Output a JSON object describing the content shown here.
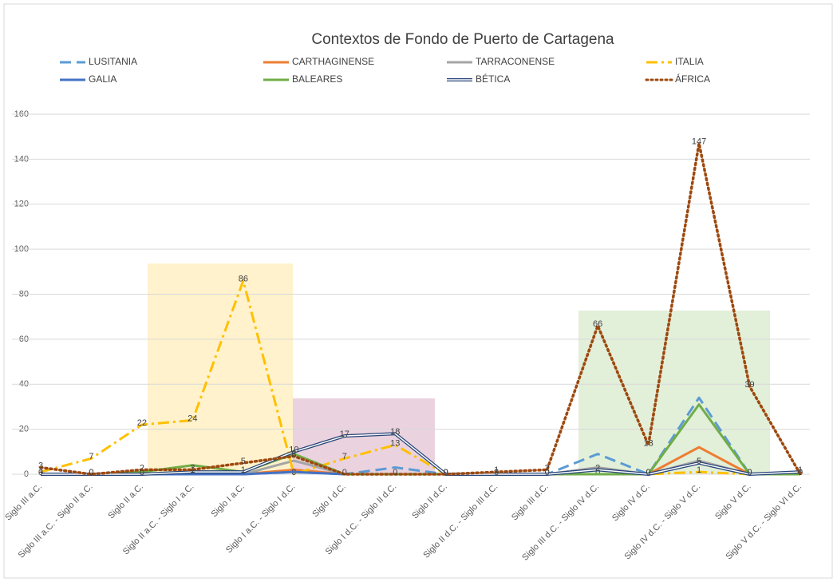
{
  "chart_data": {
    "type": "line",
    "title": "Contextos de Fondo de Puerto de Cartagena",
    "categories": [
      "Siglo III a.C.",
      "Siglo III a.C. - Siglo II a.C.",
      "Siglo II a.C.",
      "Siglo II a.C. - Siglo I a.C.",
      "Siglo I a.C.",
      "Siglo I a.C. - Siglo I d.C.",
      "Siglo I d.C.",
      "Siglo I d.C. - Siglo II d.C.",
      "Siglo II d.C.",
      "Siglo II d.C. - Siglo III d.C.",
      "Siglo III d.C.",
      "Siglo III d.C. - Siglo IV d.C.",
      "Siglo IV d.C.",
      "Siglo IV d.C. - Siglo V d.C.",
      "Siglo V d.C.",
      "Siglo V d.C. - Siglo VI d.C."
    ],
    "series": [
      {
        "name": "LUSITANIA",
        "color": "#5b9bd5",
        "style": "dashed",
        "values": [
          0,
          0,
          0,
          0,
          0,
          1,
          0,
          3,
          0,
          0,
          0,
          9,
          0,
          34,
          0,
          0
        ]
      },
      {
        "name": "CARTHAGINENSE",
        "color": "#ed7d31",
        "style": "solid",
        "values": [
          0,
          0,
          0,
          0,
          0,
          2,
          0,
          0,
          0,
          0,
          0,
          0,
          0,
          12,
          0,
          0
        ]
      },
      {
        "name": "TARRACONENSE",
        "color": "#a5a5a5",
        "style": "solid",
        "values": [
          0,
          0,
          0,
          0,
          0,
          6,
          0,
          0,
          0,
          0,
          0,
          3,
          0,
          6,
          0,
          0
        ]
      },
      {
        "name": "ITALIA",
        "color": "#ffc000",
        "style": "dashdot",
        "data_labels": true,
        "values": [
          1,
          7,
          22,
          24,
          86,
          0,
          7,
          13,
          0,
          0,
          0,
          0,
          0,
          1,
          0,
          0
        ]
      },
      {
        "name": "GALIA",
        "color": "#4472c4",
        "style": "solid",
        "values": [
          0,
          0,
          0,
          0,
          0,
          1,
          0,
          0,
          0,
          0,
          0,
          0,
          0,
          5,
          0,
          0
        ]
      },
      {
        "name": "BALEARES",
        "color": "#70ad47",
        "style": "solid",
        "values": [
          0,
          0,
          1,
          4,
          1,
          9,
          0,
          0,
          0,
          0,
          0,
          0,
          0,
          31,
          0,
          0
        ]
      },
      {
        "name": "BÉTICA",
        "color": "#264478",
        "style": "double",
        "data_labels": true,
        "values": [
          0,
          0,
          0,
          1,
          1,
          10,
          17,
          18,
          0,
          0,
          0,
          2,
          0,
          5,
          0,
          1
        ]
      },
      {
        "name": "ÁFRICA",
        "color": "#9e480e",
        "style": "dotted",
        "data_labels": true,
        "values": [
          3,
          0,
          2,
          2,
          5,
          8,
          0,
          0,
          0,
          1,
          2,
          66,
          13,
          147,
          39,
          0
        ]
      }
    ],
    "ylim": [
      0,
      160
    ],
    "yticks": [
      0,
      20,
      40,
      60,
      80,
      100,
      120,
      140,
      160
    ],
    "grid": true
  }
}
